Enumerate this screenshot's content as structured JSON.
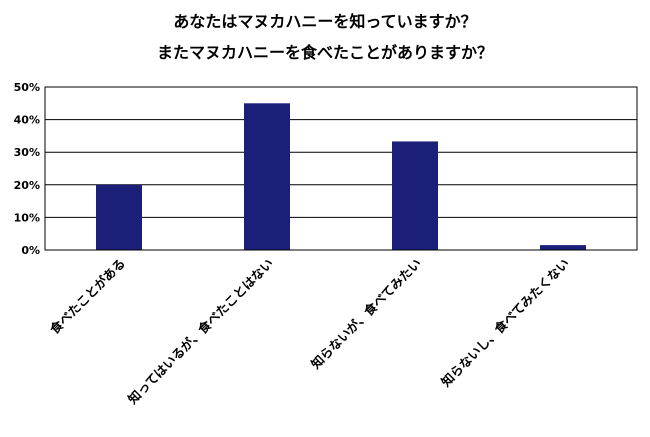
{
  "chart_data": {
    "type": "bar",
    "title_lines": [
      "あなたはマヌカハニーを知っていますか？",
      "またマヌカハニーを食べたことがありますか？"
    ],
    "xlabel": "",
    "ylabel": "",
    "categories": [
      "食べたことがある",
      "知ってはいるが、食べたことはない",
      "知らないが、食べてみたい",
      "知らないし、食べてみたくない"
    ],
    "values": [
      20.0,
      45.0,
      33.3,
      1.5
    ],
    "ylim": [
      0,
      50
    ],
    "yticks": [
      0,
      10,
      20,
      30,
      40,
      50
    ],
    "ytick_labels": [
      "0%",
      "10%",
      "20%",
      "30%",
      "40%",
      "50%"
    ],
    "grid": true,
    "legend": "none",
    "bar_color": "#1c1f7a"
  }
}
